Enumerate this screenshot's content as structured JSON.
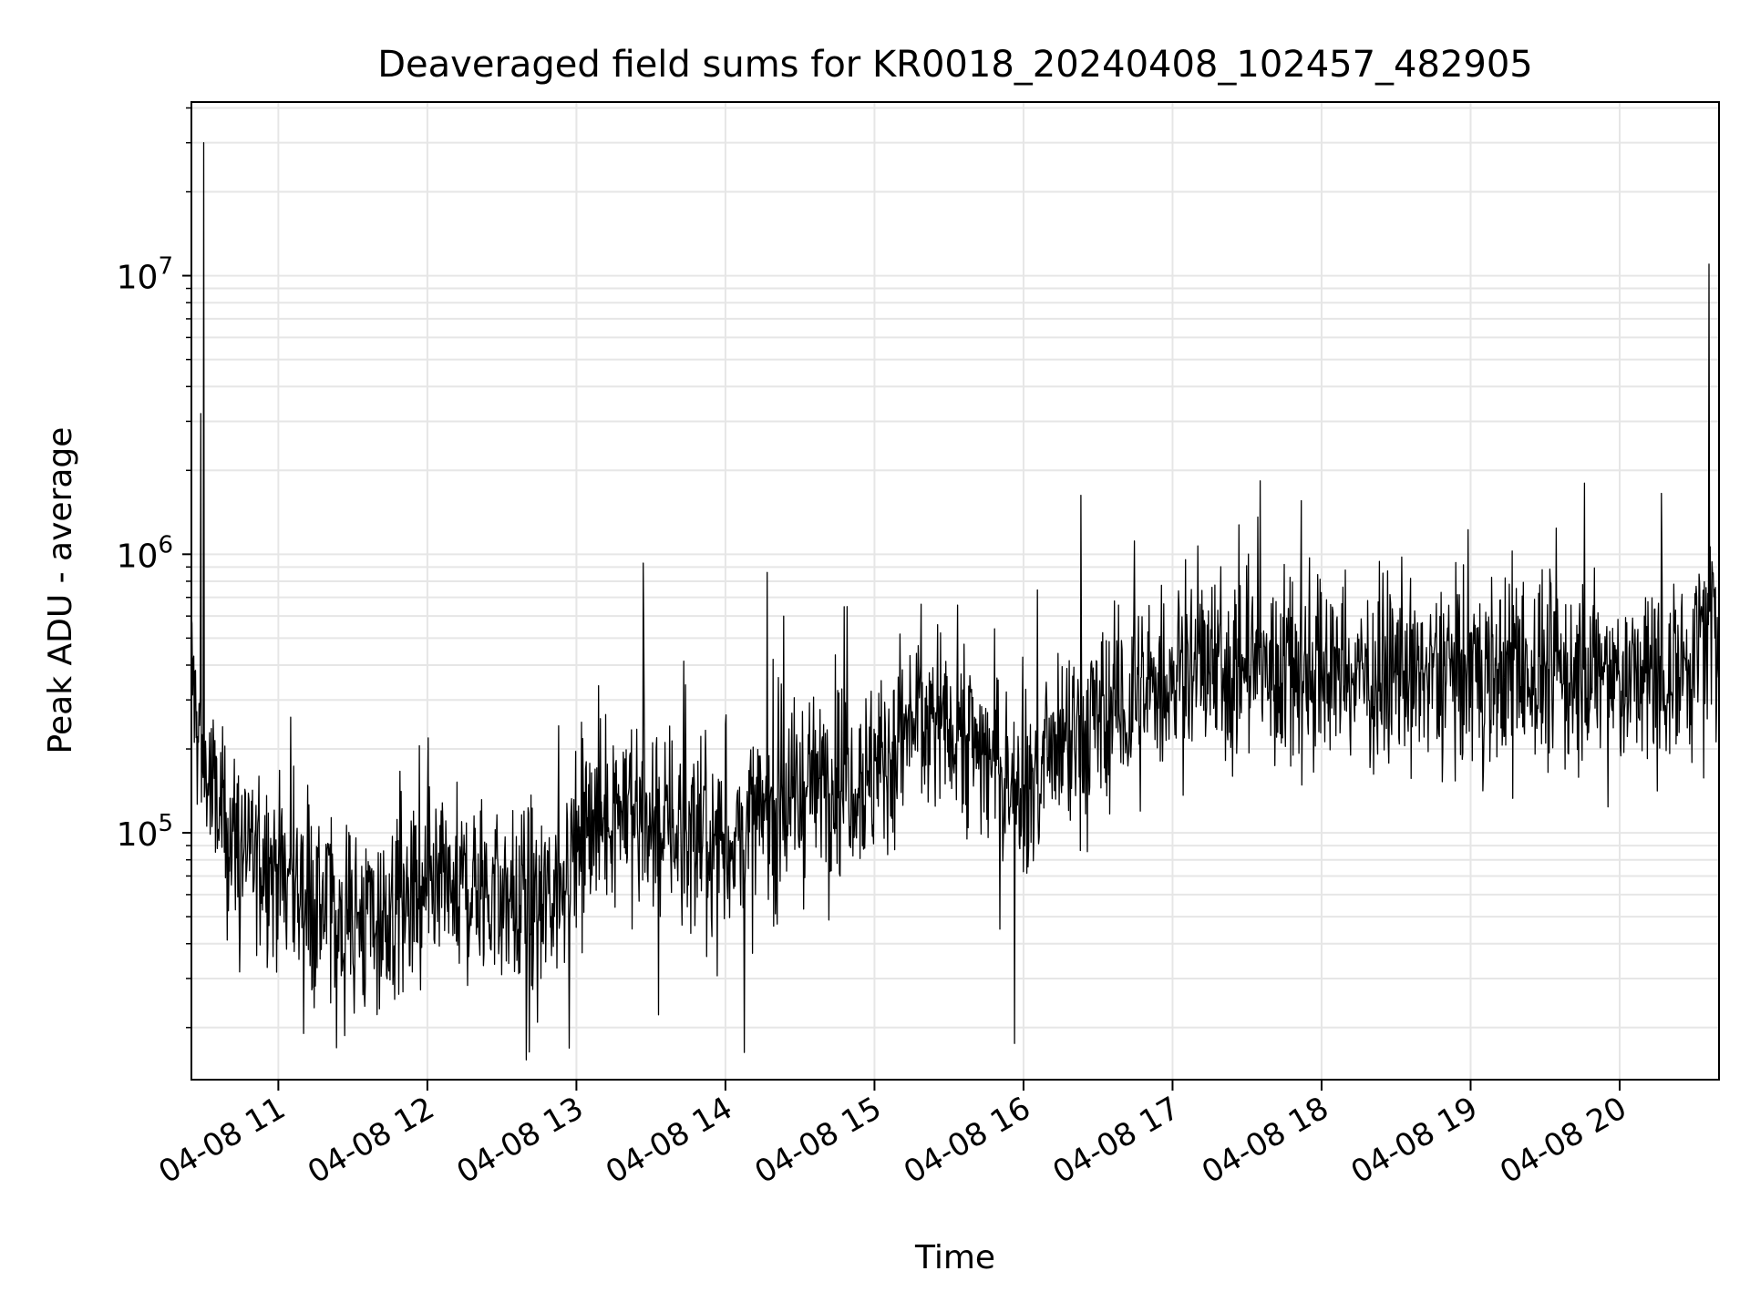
{
  "chart_data": {
    "type": "line",
    "title": "Deaveraged field sums for KR0018_20240408_102457_482905",
    "xlabel": "Time",
    "ylabel": "Peak ADU - average",
    "x_axis": {
      "kind": "datetime",
      "start": "2024-04-08T10:25",
      "end": "2024-04-08T20:40",
      "ticks": [
        {
          "value": "2024-04-08T11:00",
          "label": "04-08 11"
        },
        {
          "value": "2024-04-08T12:00",
          "label": "04-08 12"
        },
        {
          "value": "2024-04-08T13:00",
          "label": "04-08 13"
        },
        {
          "value": "2024-04-08T14:00",
          "label": "04-08 14"
        },
        {
          "value": "2024-04-08T15:00",
          "label": "04-08 15"
        },
        {
          "value": "2024-04-08T16:00",
          "label": "04-08 16"
        },
        {
          "value": "2024-04-08T17:00",
          "label": "04-08 17"
        },
        {
          "value": "2024-04-08T18:00",
          "label": "04-08 18"
        },
        {
          "value": "2024-04-08T19:00",
          "label": "04-08 19"
        },
        {
          "value": "2024-04-08T20:00",
          "label": "04-08 20"
        }
      ]
    },
    "y_axis": {
      "scale": "log",
      "ylim": [
        13000,
        42000000
      ],
      "ticks": [
        {
          "value": 100000,
          "base": "10",
          "exp": "5"
        },
        {
          "value": 1000000,
          "base": "10",
          "exp": "6"
        },
        {
          "value": 10000000,
          "base": "10",
          "exp": "7"
        }
      ]
    },
    "grid": true,
    "line_color": "#000000",
    "series": [
      {
        "x": [
          "2024-04-08T10:25",
          "2024-04-08T10:27",
          "2024-04-08T10:30",
          "2024-04-08T10:35",
          "2024-04-08T10:40",
          "2024-04-08T10:45",
          "2024-04-08T11:00",
          "2024-04-08T11:15",
          "2024-04-08T11:30",
          "2024-04-08T11:45",
          "2024-04-08T12:00",
          "2024-04-08T12:15",
          "2024-04-08T12:30",
          "2024-04-08T12:45",
          "2024-04-08T13:00",
          "2024-04-08T13:15",
          "2024-04-08T13:30",
          "2024-04-08T13:45",
          "2024-04-08T14:00",
          "2024-04-08T14:15",
          "2024-04-08T14:30",
          "2024-04-08T14:45",
          "2024-04-08T15:00",
          "2024-04-08T15:15",
          "2024-04-08T15:30",
          "2024-04-08T15:45",
          "2024-04-08T16:00",
          "2024-04-08T16:15",
          "2024-04-08T16:30",
          "2024-04-08T16:45",
          "2024-04-08T17:00",
          "2024-04-08T17:30",
          "2024-04-08T18:00",
          "2024-04-08T18:30",
          "2024-04-08T19:00",
          "2024-04-08T19:30",
          "2024-04-08T20:00",
          "2024-04-08T20:15",
          "2024-04-08T20:30",
          "2024-04-08T20:40"
        ],
        "y": [
          400000,
          250000,
          180000,
          120000,
          100000,
          90000,
          75000,
          55000,
          50000,
          48000,
          55000,
          65000,
          60000,
          50000,
          90000,
          130000,
          110000,
          100000,
          90000,
          110000,
          140000,
          170000,
          160000,
          250000,
          260000,
          190000,
          140000,
          190000,
          250000,
          280000,
          380000,
          400000,
          380000,
          360000,
          380000,
          380000,
          360000,
          360000,
          450000,
          600000
        ]
      }
    ],
    "spikes": [
      {
        "x": "2024-04-08T10:30",
        "y": 30000000
      },
      {
        "x": "2024-04-08T10:29",
        "y": 3200000
      },
      {
        "x": "2024-04-08T13:27",
        "y": 930000
      },
      {
        "x": "2024-04-08T14:17",
        "y": 860000
      },
      {
        "x": "2024-04-08T19:46",
        "y": 1800000
      },
      {
        "x": "2024-04-08T20:36",
        "y": 11000000
      }
    ]
  }
}
